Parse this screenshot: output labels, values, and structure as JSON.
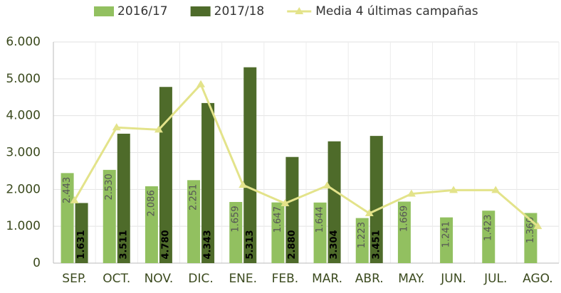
{
  "chart_data": {
    "type": "bar",
    "categories": [
      "SEP.",
      "OCT.",
      "NOV.",
      "DIC.",
      "ENE.",
      "FEB.",
      "MAR.",
      "ABR.",
      "MAY.",
      "JUN.",
      "JUL.",
      "AGO."
    ],
    "series": [
      {
        "name": "2016/17",
        "color": "#92c060",
        "values": [
          2443,
          2530,
          2086,
          2251,
          1659,
          1647,
          1644,
          1223,
          1669,
          1241,
          1423,
          1360
        ],
        "value_labels": [
          "2.443",
          "2.530",
          "2.086",
          "2.251",
          "1.659",
          "1.647",
          "1.644",
          "1.223",
          "1.669",
          "1.241",
          "1.423",
          "1.360"
        ]
      },
      {
        "name": "2017/18",
        "color": "#4e6b2a",
        "values": [
          1631,
          3511,
          4780,
          4343,
          5313,
          2880,
          3304,
          3451,
          null,
          null,
          null,
          null
        ],
        "value_labels": [
          "1.631",
          "3.511",
          "4.780",
          "4.343",
          "5.313",
          "2.880",
          "3.304",
          "3.451",
          null,
          null,
          null,
          null
        ]
      },
      {
        "name": "Media 4 últimas campañas",
        "color": "#e3e38a",
        "type": "line",
        "values": [
          1700,
          3680,
          3620,
          4850,
          2120,
          1620,
          2100,
          1350,
          1880,
          1980,
          1980,
          1000
        ]
      }
    ],
    "ylim": [
      0,
      6000
    ],
    "yticks": [
      0,
      {
        "value": 1000,
        "label": "1.000"
      },
      {
        "value": 2000,
        "label": "2.000"
      },
      {
        "value": 3000,
        "label": "3.000"
      },
      {
        "value": 4000,
        "label": "4.000"
      },
      {
        "value": 5000,
        "label": "5.000"
      },
      {
        "value": 6000,
        "label": "6.000"
      }
    ],
    "grid": true,
    "legend": "top"
  }
}
